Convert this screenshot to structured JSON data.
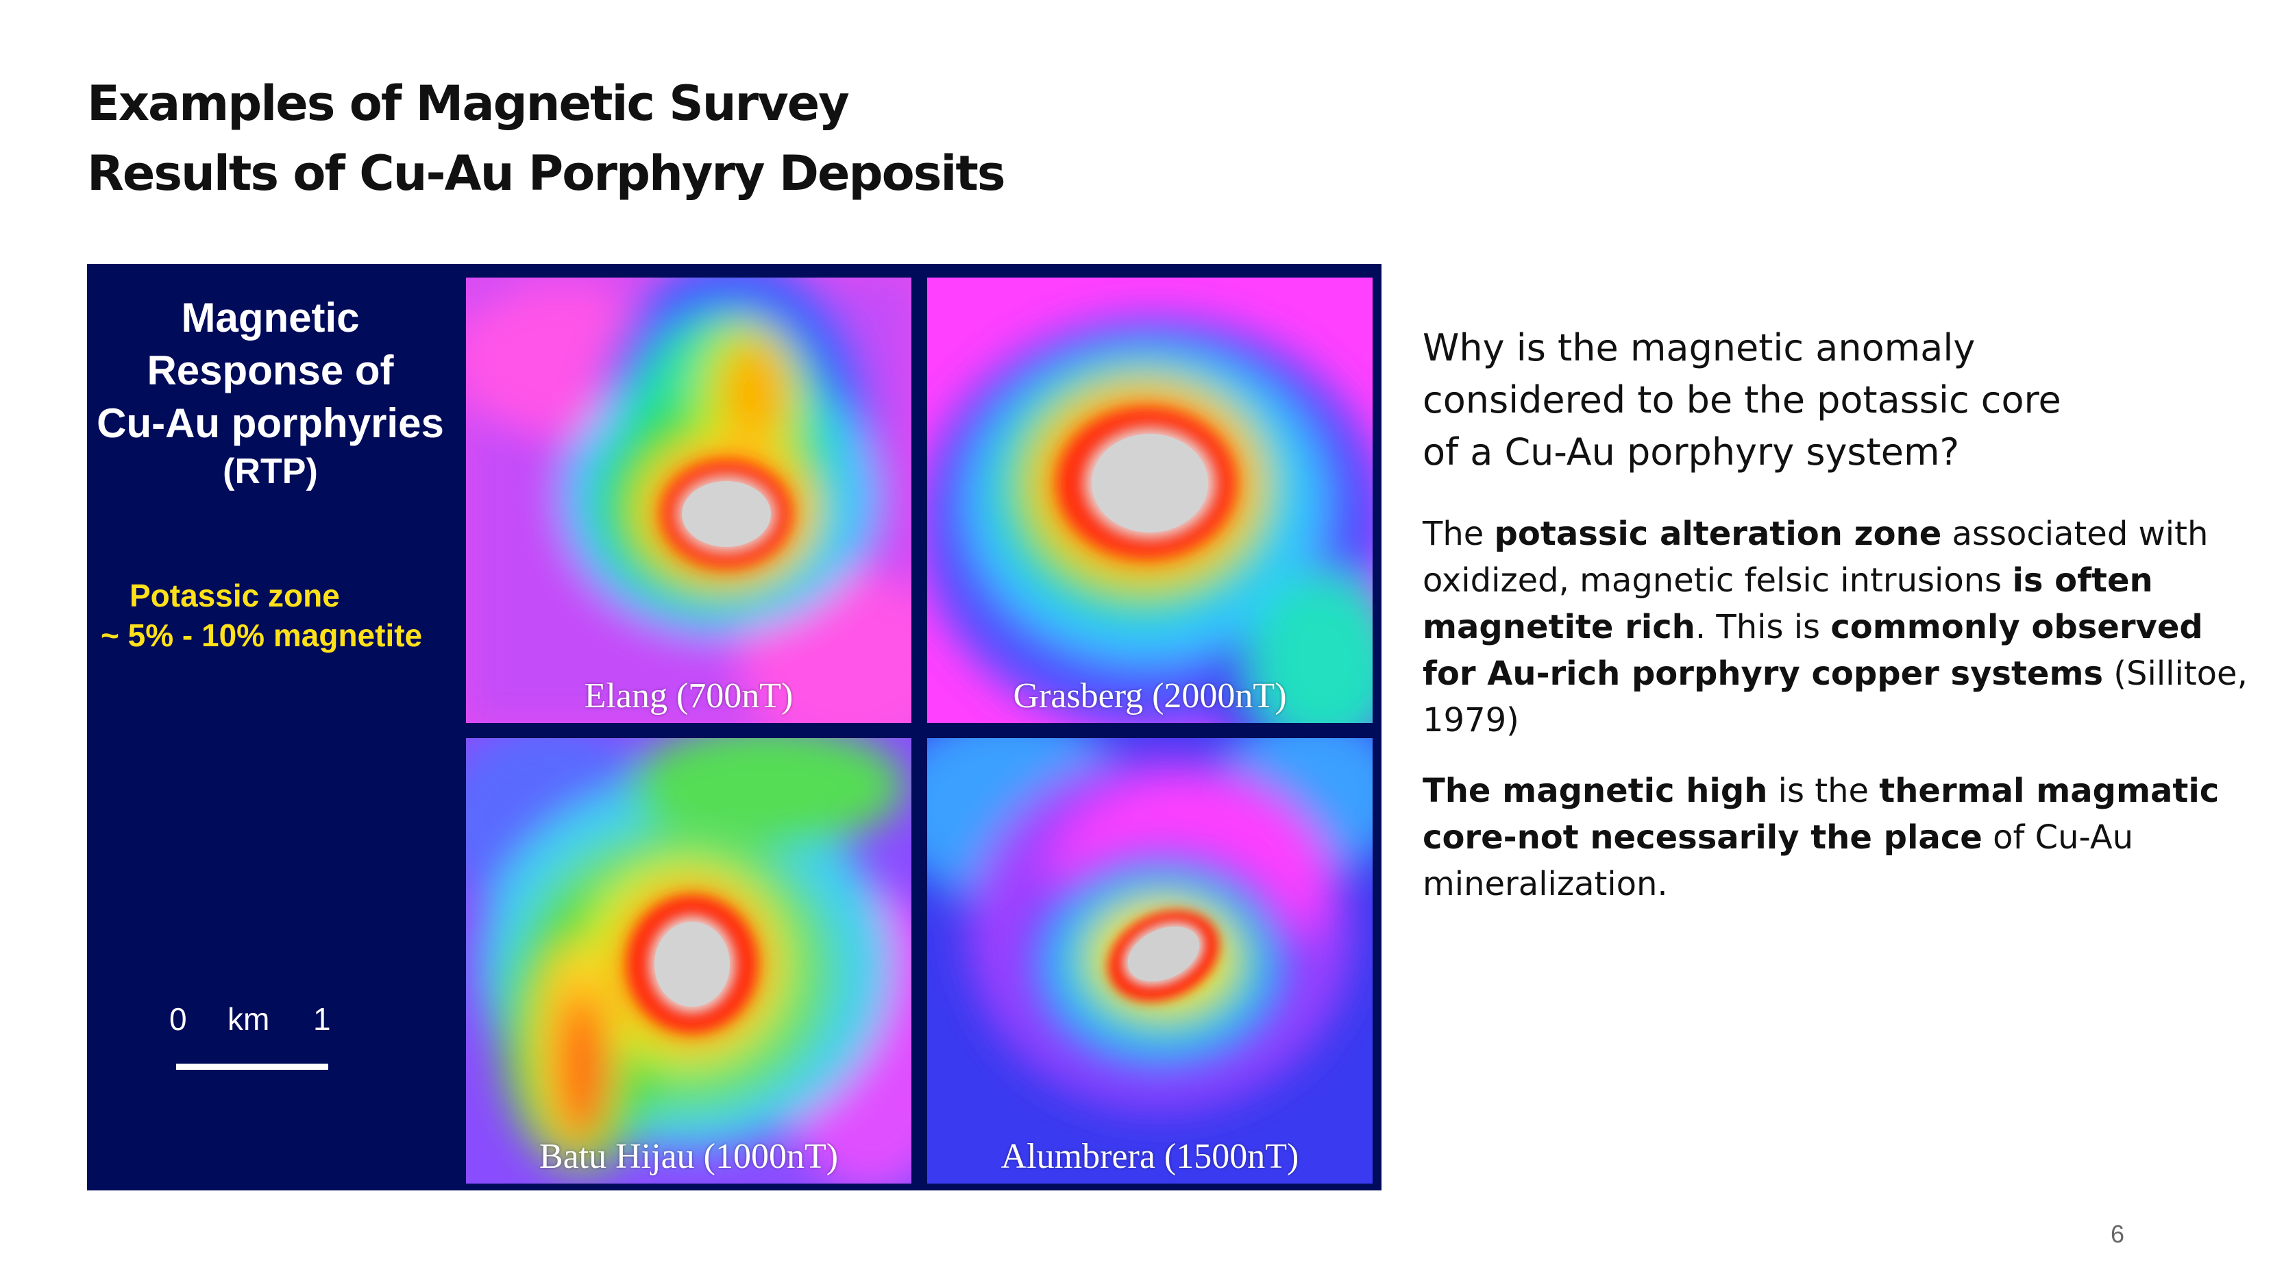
{
  "title": {
    "line1": "Examples of Magnetic Survey",
    "line2": "Results of Cu-Au Porphyry Deposits"
  },
  "figure": {
    "legend": {
      "line1": "Magnetic",
      "line2": "Response of",
      "line3": "Cu-Au porphyries",
      "line4": "(RTP)"
    },
    "potassic": {
      "line1": "Potassic zone",
      "line2": "~ 5% - 10% magnetite"
    },
    "scale": {
      "start": "0",
      "unit": "km",
      "end": "1"
    },
    "panels": [
      {
        "label": "Elang (700nT)"
      },
      {
        "label": "Grasberg (2000nT)"
      },
      {
        "label": "Batu Hijau (1000nT)"
      },
      {
        "label": "Alumbrera (1500nT)"
      }
    ]
  },
  "question": {
    "line1": "Why is the magnetic anomaly",
    "line2": "considered to be the potassic core",
    "line3": "of a Cu-Au porphyry system?"
  },
  "para1": {
    "t1": "The ",
    "b1": "potassic alteration zone",
    "t2": " associated with oxidized, magnetic felsic intrusions ",
    "b2": "is often magnetite rich",
    "t3": ". This is ",
    "b3": "commonly observed for Au-rich porphyry copper systems",
    "t4": " (Sillitoe, 1979)"
  },
  "para2": {
    "b1": "The magnetic high",
    "t1": " is the ",
    "b2": "thermal magmatic core-not necessarily the place",
    "t2": " of Cu-Au mineralization."
  },
  "page_number": "6",
  "colors": {
    "figure_bg": "#000b5a",
    "potassic_text": "#ffe11a",
    "anomaly_red": "#ff2a10",
    "anomaly_core": "#d9d9d9",
    "background_magenta": "#ff40ff",
    "background_blue": "#3a3af0"
  }
}
